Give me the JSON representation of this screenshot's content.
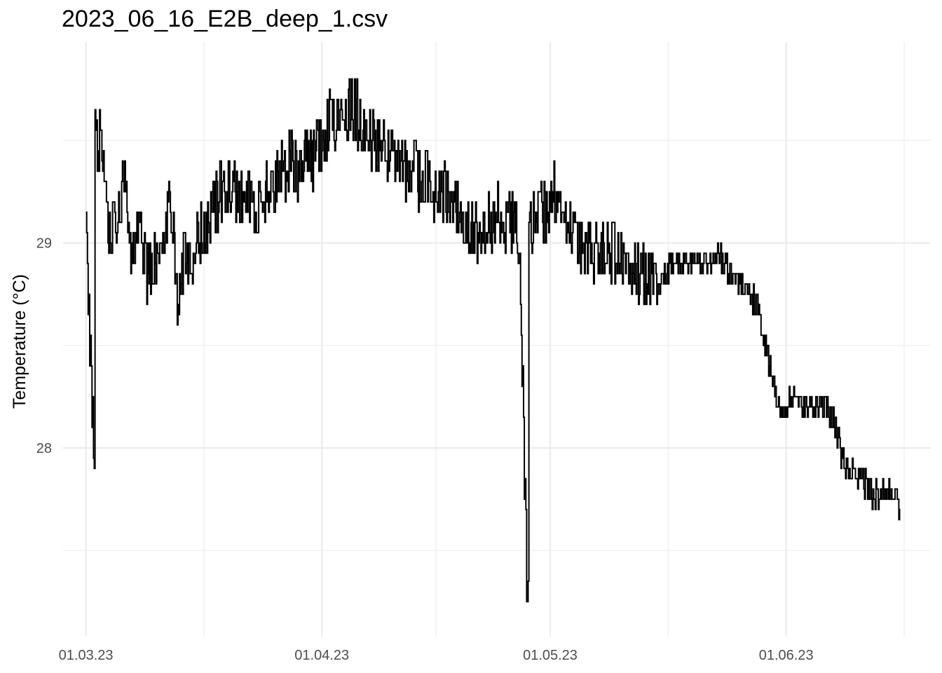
{
  "chart_data": {
    "type": "line",
    "title": "2023_06_16_E2B_deep_1.csv",
    "xlabel": "",
    "ylabel": "Temperature (°C)",
    "x_tick_labels": [
      "01.03.23",
      "01.04.23",
      "01.05.23",
      "01.06.23"
    ],
    "x_tick_dates": [
      "2023-03-01",
      "2023-04-01",
      "2023-05-01",
      "2023-06-01"
    ],
    "y_ticks": [
      28,
      29
    ],
    "y_tick_labels": [
      "28",
      "29"
    ],
    "xlim": [
      "2023-02-26",
      "2023-06-20"
    ],
    "ylim": [
      27.08,
      29.98
    ],
    "grid": true,
    "line_color": "#000000",
    "series": [
      {
        "x": [
          "2023-03-01",
          "2023-03-02",
          "2023-03-03",
          "2023-03-04",
          "2023-03-05",
          "2023-03-06",
          "2023-03-07",
          "2023-03-08",
          "2023-03-09",
          "2023-03-10",
          "2023-03-11",
          "2023-03-12",
          "2023-03-13",
          "2023-03-14",
          "2023-03-15",
          "2023-03-16",
          "2023-03-17",
          "2023-03-18",
          "2023-03-19",
          "2023-03-20",
          "2023-03-21",
          "2023-03-22",
          "2023-03-23",
          "2023-03-24",
          "2023-03-25",
          "2023-03-26",
          "2023-03-27",
          "2023-03-28",
          "2023-03-29",
          "2023-03-30",
          "2023-03-31",
          "2023-04-01",
          "2023-04-02",
          "2023-04-03",
          "2023-04-04",
          "2023-04-05",
          "2023-04-06",
          "2023-04-07",
          "2023-04-08",
          "2023-04-09",
          "2023-04-10",
          "2023-04-11",
          "2023-04-12",
          "2023-04-13",
          "2023-04-14",
          "2023-04-15",
          "2023-04-16",
          "2023-04-17",
          "2023-04-18",
          "2023-04-19",
          "2023-04-20",
          "2023-04-21",
          "2023-04-22",
          "2023-04-23",
          "2023-04-24",
          "2023-04-25",
          "2023-04-26",
          "2023-04-27",
          "2023-04-28",
          "2023-04-29",
          "2023-04-30",
          "2023-05-01",
          "2023-05-02",
          "2023-05-03",
          "2023-05-04",
          "2023-05-05",
          "2023-05-06",
          "2023-05-07",
          "2023-05-08",
          "2023-05-09",
          "2023-05-10",
          "2023-05-11",
          "2023-05-12",
          "2023-05-13",
          "2023-05-14",
          "2023-05-15",
          "2023-05-16",
          "2023-05-17",
          "2023-05-18",
          "2023-05-19",
          "2023-05-20",
          "2023-05-21",
          "2023-05-22",
          "2023-05-23",
          "2023-05-24",
          "2023-05-25",
          "2023-05-26",
          "2023-05-27",
          "2023-05-28",
          "2023-05-29",
          "2023-05-30",
          "2023-05-31",
          "2023-06-01",
          "2023-06-02",
          "2023-06-03",
          "2023-06-04",
          "2023-06-05",
          "2023-06-06",
          "2023-06-07",
          "2023-06-08",
          "2023-06-09",
          "2023-06-10",
          "2023-06-11",
          "2023-06-12",
          "2023-06-13",
          "2023-06-14",
          "2023-06-15",
          "2023-06-16"
        ],
        "y": [
          29.0,
          28.05,
          29.5,
          29.0,
          29.15,
          29.3,
          28.9,
          29.1,
          28.85,
          28.95,
          29.0,
          29.3,
          28.75,
          28.95,
          28.9,
          29.05,
          29.1,
          29.2,
          29.25,
          29.3,
          29.2,
          29.25,
          29.15,
          29.2,
          29.25,
          29.3,
          29.35,
          29.4,
          29.35,
          29.45,
          29.4,
          29.5,
          29.6,
          29.55,
          29.6,
          29.65,
          29.6,
          29.55,
          29.5,
          29.45,
          29.45,
          29.4,
          29.35,
          29.4,
          29.3,
          29.3,
          29.2,
          29.25,
          29.2,
          29.15,
          29.1,
          29.05,
          29.05,
          29.1,
          29.15,
          29.1,
          29.1,
          29.0,
          27.2,
          29.1,
          29.15,
          29.2,
          29.25,
          29.1,
          29.05,
          29.0,
          29.0,
          28.95,
          29.0,
          28.95,
          28.95,
          28.9,
          28.9,
          28.85,
          28.8,
          28.75,
          28.85,
          28.9,
          28.9,
          28.9,
          28.9,
          28.9,
          28.9,
          28.95,
          28.9,
          28.85,
          28.8,
          28.75,
          28.7,
          28.55,
          28.35,
          28.2,
          28.2,
          28.25,
          28.2,
          28.2,
          28.2,
          28.2,
          28.15,
          28.0,
          27.9,
          27.85,
          27.85,
          27.8,
          27.75,
          27.8,
          27.75,
          27.7
        ]
      }
    ]
  }
}
